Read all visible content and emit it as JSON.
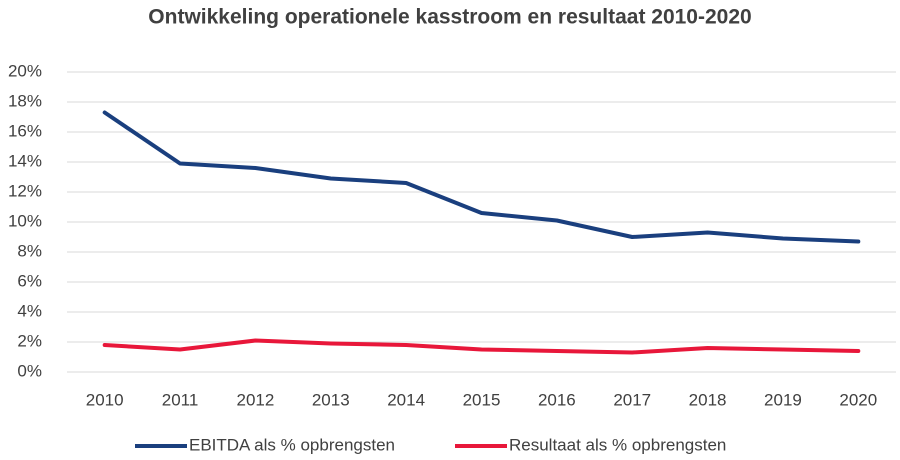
{
  "chart_data": {
    "type": "line",
    "title": "Ontwikkeling operationele kasstroom en resultaat 2010-2020",
    "categories": [
      "2010",
      "2011",
      "2012",
      "2013",
      "2014",
      "2015",
      "2016",
      "2017",
      "2018",
      "2019",
      "2020"
    ],
    "series": [
      {
        "name": "EBITDA als % opbrengsten",
        "color": "#1a3f7e",
        "values": [
          17.3,
          13.9,
          13.6,
          12.9,
          12.6,
          10.6,
          10.1,
          9.0,
          9.3,
          8.9,
          8.7
        ]
      },
      {
        "name": "Resultaat als % opbrengsten",
        "color": "#e8173a",
        "values": [
          1.8,
          1.5,
          2.1,
          1.9,
          1.8,
          1.5,
          1.4,
          1.3,
          1.6,
          1.5,
          1.4
        ]
      }
    ],
    "ylim": [
      0,
      20
    ],
    "yticks": [
      {
        "value": 0,
        "label": "0%"
      },
      {
        "value": 2,
        "label": "2%"
      },
      {
        "value": 4,
        "label": "4%"
      },
      {
        "value": 6,
        "label": "6%"
      },
      {
        "value": 8,
        "label": "8%"
      },
      {
        "value": 10,
        "label": "10%"
      },
      {
        "value": 12,
        "label": "12%"
      },
      {
        "value": 14,
        "label": "14%"
      },
      {
        "value": 16,
        "label": "16%"
      },
      {
        "value": 18,
        "label": "18%"
      },
      {
        "value": 20,
        "label": "20%"
      }
    ],
    "grid": true,
    "legend": "bottom"
  }
}
